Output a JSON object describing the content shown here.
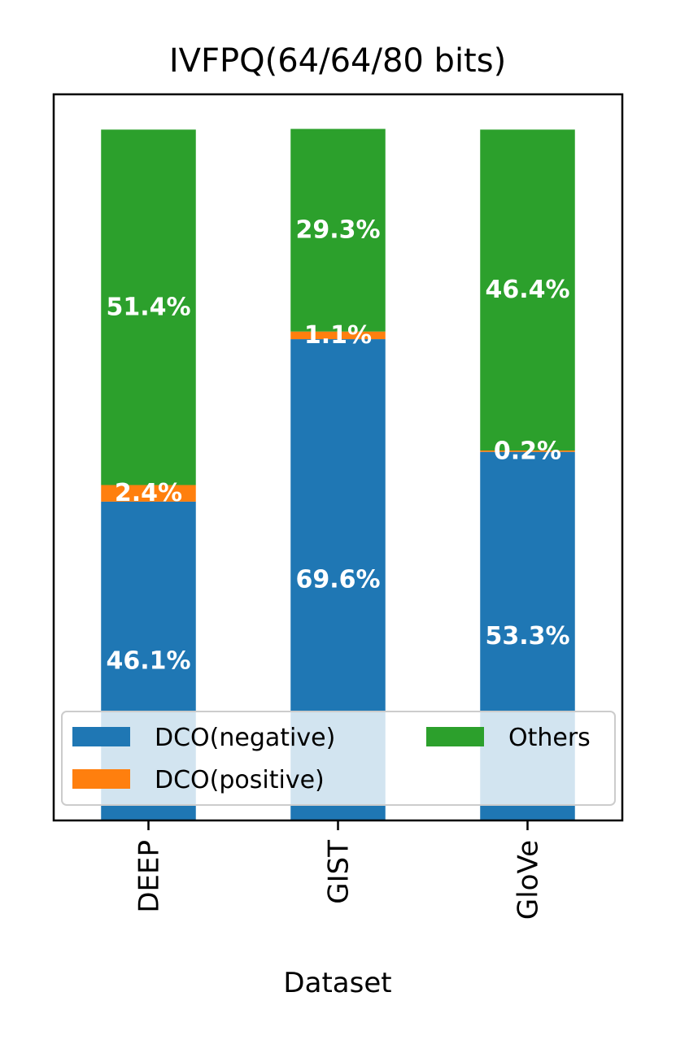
{
  "chart_data": {
    "type": "bar",
    "stacked": true,
    "title": "IVFPQ(64/64/80 bits)",
    "xlabel": "Dataset",
    "ylabel": "",
    "categories": [
      "DEEP",
      "GIST",
      "GloVe"
    ],
    "ylim": [
      0,
      105
    ],
    "series": [
      {
        "name": "DCO(negative)",
        "color": "#1f77b4",
        "values": [
          46.1,
          69.6,
          53.3
        ],
        "labels": [
          "46.1%",
          "69.6%",
          "53.3%"
        ]
      },
      {
        "name": "DCO(positive)",
        "color": "#ff7f0e",
        "values": [
          2.4,
          1.1,
          0.2
        ],
        "labels": [
          "2.4%",
          "1.1%",
          "0.2%"
        ]
      },
      {
        "name": "Others",
        "color": "#2ca02c",
        "values": [
          51.4,
          29.3,
          46.4
        ],
        "labels": [
          "51.4%",
          "29.3%",
          "46.4%"
        ]
      }
    ],
    "legend": {
      "position": "lower-center",
      "columns": 2,
      "entries": [
        "DCO(negative)",
        "DCO(positive)",
        "Others"
      ]
    },
    "grid": false,
    "y_ticks_visible": false
  }
}
